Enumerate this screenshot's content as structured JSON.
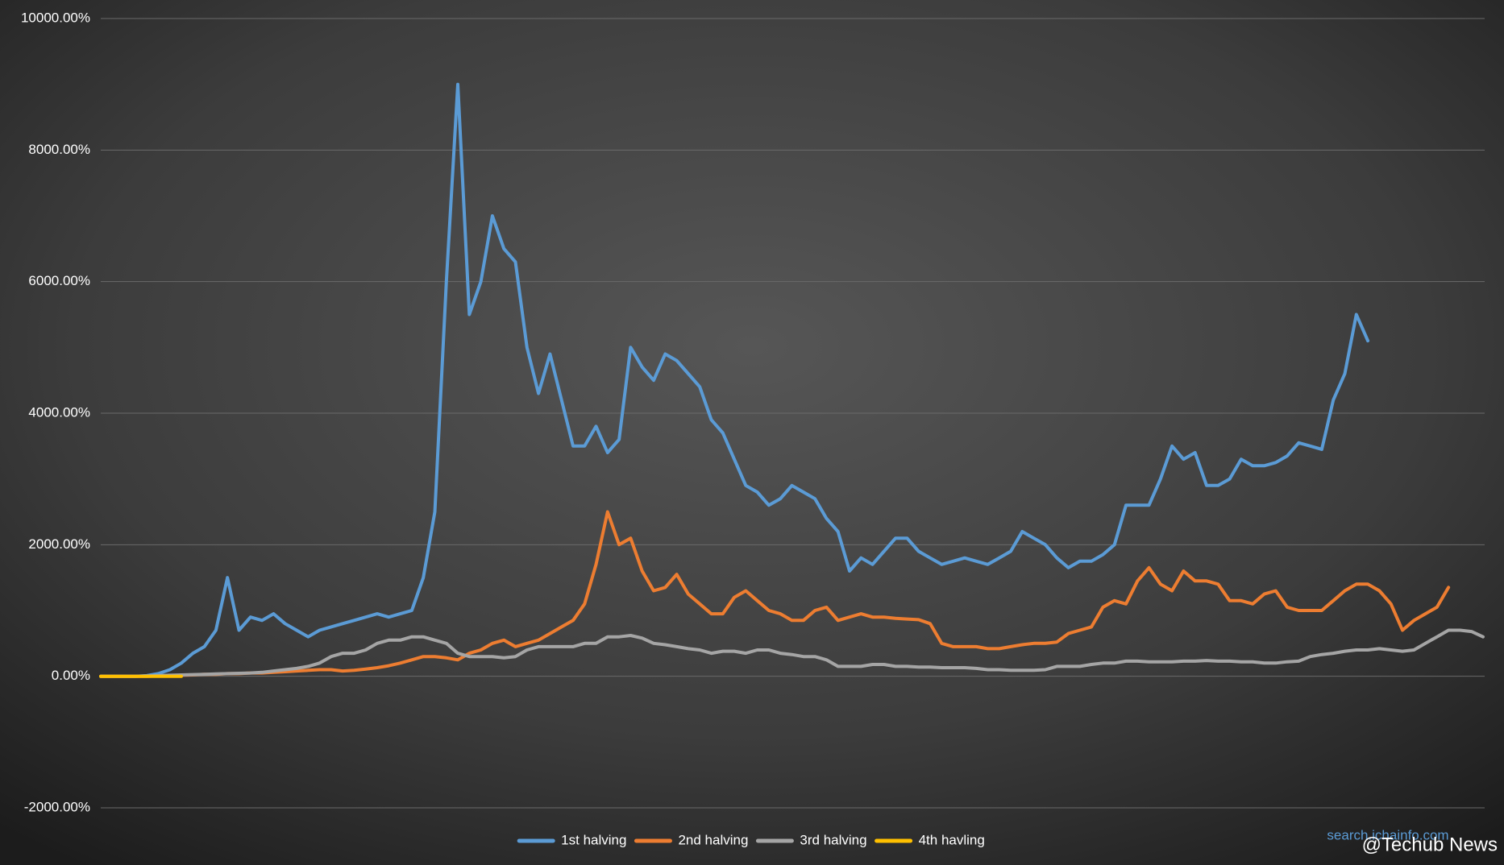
{
  "chart_data": {
    "type": "line",
    "series": [
      {
        "name": "1st halving",
        "color": "#5b9bd5",
        "values": [
          0,
          0,
          0,
          0,
          10,
          40,
          100,
          200,
          350,
          450,
          700,
          1500,
          700,
          900,
          850,
          950,
          800,
          700,
          600,
          700,
          750,
          800,
          850,
          900,
          950,
          900,
          950,
          1000,
          1500,
          2500,
          6000,
          9000,
          5500,
          6000,
          7000,
          6500,
          6300,
          5000,
          4300,
          4900,
          4200,
          3500,
          3500,
          3800,
          3400,
          3600,
          5000,
          4700,
          4500,
          4900,
          4800,
          4600,
          4400,
          3900,
          3700,
          3300,
          2900,
          2800,
          2600,
          2700,
          2900,
          2800,
          2700,
          2400,
          2200,
          1600,
          1800,
          1700,
          1900,
          2100,
          2100,
          1900,
          1800,
          1700,
          1750,
          1800,
          1750,
          1700,
          1800,
          1900,
          2200,
          2100,
          2000,
          1800,
          1650,
          1750,
          1750,
          1850,
          2000,
          2600,
          2600,
          2600,
          3000,
          3500,
          3300,
          3400,
          2900,
          2900,
          3000,
          3300,
          3200,
          3200,
          3250,
          3350,
          3550,
          3500,
          3450,
          4200,
          4600,
          5500,
          5100
        ]
      },
      {
        "name": "2nd halving",
        "color": "#ed7d31",
        "values": [
          0,
          0,
          0,
          0,
          0,
          5,
          10,
          15,
          20,
          30,
          30,
          40,
          40,
          50,
          50,
          60,
          70,
          80,
          90,
          100,
          100,
          80,
          90,
          110,
          130,
          160,
          200,
          250,
          300,
          300,
          280,
          250,
          350,
          400,
          500,
          550,
          450,
          500,
          550,
          650,
          750,
          850,
          1100,
          1700,
          2500,
          2000,
          2100,
          1600,
          1300,
          1350,
          1550,
          1250,
          1100,
          950,
          950,
          1200,
          1300,
          1150,
          1000,
          950,
          850,
          850,
          1000,
          1050,
          850,
          900,
          950,
          900,
          900,
          880,
          870,
          860,
          800,
          500,
          450,
          450,
          450,
          420,
          420,
          450,
          480,
          500,
          500,
          520,
          650,
          700,
          750,
          1050,
          1150,
          1100,
          1450,
          1650,
          1400,
          1300,
          1600,
          1450,
          1450,
          1400,
          1150,
          1150,
          1100,
          1250,
          1300,
          1050,
          1000,
          1000,
          1000,
          1150,
          1300,
          1400,
          1400,
          1300,
          1100,
          700,
          850,
          950,
          1050,
          1350
        ]
      },
      {
        "name": "3rd halving",
        "color": "#a5a5a5",
        "values": [
          0,
          0,
          0,
          0,
          5,
          10,
          15,
          20,
          25,
          30,
          35,
          40,
          45,
          50,
          60,
          80,
          100,
          120,
          150,
          200,
          300,
          350,
          350,
          400,
          500,
          550,
          550,
          600,
          600,
          550,
          500,
          350,
          300,
          300,
          300,
          280,
          300,
          400,
          450,
          450,
          450,
          450,
          500,
          500,
          600,
          600,
          620,
          580,
          500,
          480,
          450,
          420,
          400,
          350,
          380,
          380,
          350,
          400,
          400,
          350,
          330,
          300,
          300,
          250,
          150,
          150,
          150,
          180,
          180,
          150,
          150,
          140,
          140,
          130,
          130,
          130,
          120,
          100,
          100,
          90,
          90,
          90,
          100,
          150,
          150,
          150,
          180,
          200,
          200,
          230,
          230,
          220,
          220,
          220,
          230,
          230,
          240,
          230,
          230,
          220,
          220,
          200,
          200,
          220,
          230,
          300,
          330,
          350,
          380,
          400,
          400,
          420,
          400,
          380,
          400,
          500,
          600,
          700,
          700,
          680,
          600
        ]
      },
      {
        "name": "4th havling",
        "color": "#ffc000",
        "values": [
          0,
          0,
          0,
          0,
          0,
          0,
          0,
          0
        ]
      }
    ],
    "ylim": [
      -2000,
      10000
    ],
    "yticks": [
      {
        "value": -2000,
        "label": "-2000.00%"
      },
      {
        "value": 0,
        "label": "0.00%"
      },
      {
        "value": 2000,
        "label": "2000.00%"
      },
      {
        "value": 4000,
        "label": "4000.00%"
      },
      {
        "value": 6000,
        "label": "6000.00%"
      },
      {
        "value": 8000,
        "label": "8000.00%"
      },
      {
        "value": 10000,
        "label": "10000.00%"
      }
    ],
    "grid": true,
    "legend": "bottom",
    "annotations": [
      "search.ichainfo.com",
      "@Techub News"
    ]
  }
}
